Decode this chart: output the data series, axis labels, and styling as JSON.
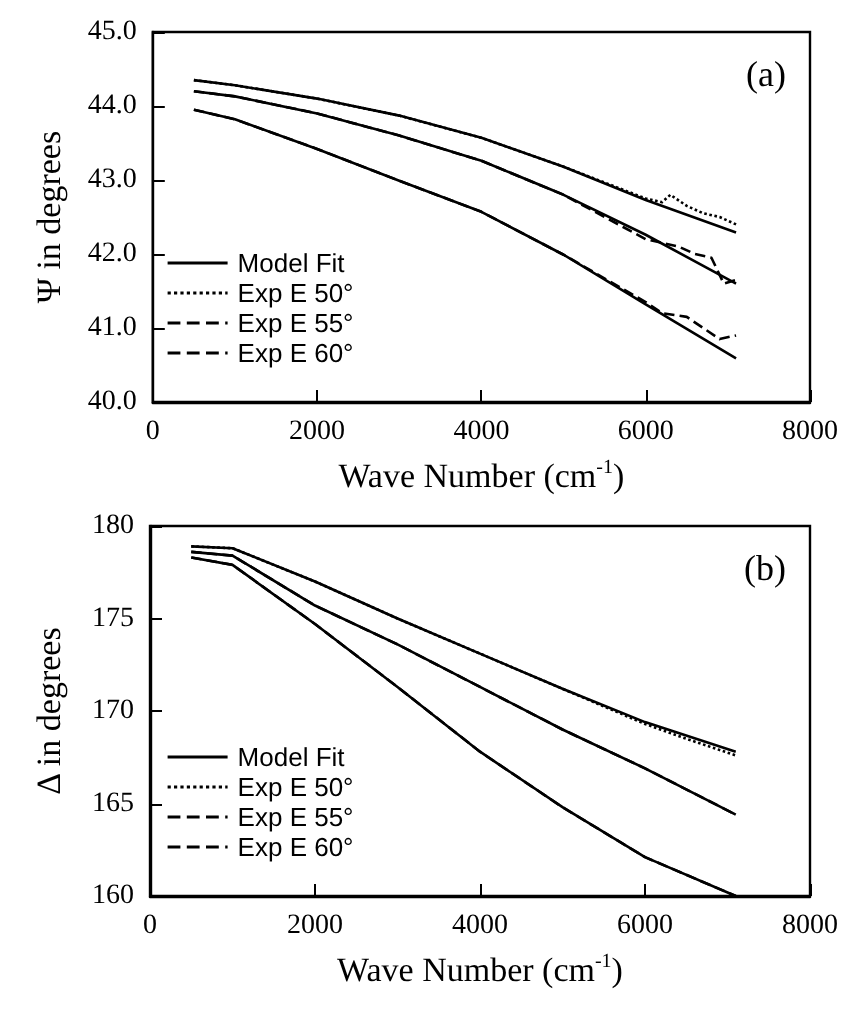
{
  "chart_data": [
    {
      "type": "line",
      "xlabel": "Wave Number (cm$^{-1}$)",
      "ylabel": "Ψ in degrees",
      "annotations": [
        "(a)"
      ],
      "xlim": [
        0,
        8000
      ],
      "xticks": [
        0,
        2000,
        4000,
        6000,
        8000
      ],
      "ylim": [
        40,
        45
      ],
      "yticks": [
        {
          "value": 40,
          "label": "40.0"
        },
        {
          "value": 41,
          "label": "41.0"
        },
        {
          "value": 42,
          "label": "42.0"
        },
        {
          "value": 43,
          "label": "43.0"
        },
        {
          "value": 44,
          "label": "44.0"
        },
        {
          "value": 45,
          "label": "45.0"
        }
      ],
      "grid": false,
      "legend": "left",
      "marker": "none",
      "series": [
        {
          "name": "Model Fit",
          "color": "#000000",
          "line_style": "solid",
          "x": [
            500,
            1000,
            2000,
            3000,
            4000,
            5000,
            6000,
            7100
          ],
          "values": [
            44.35,
            44.28,
            44.1,
            43.87,
            43.57,
            43.18,
            42.73,
            42.29
          ]
        },
        {
          "color": "#000000",
          "line_style": "solid",
          "x": [
            500,
            1000,
            2000,
            3000,
            4000,
            5000,
            6000,
            7100
          ],
          "values": [
            44.2,
            44.13,
            43.9,
            43.6,
            43.26,
            42.8,
            42.26,
            41.6
          ]
        },
        {
          "color": "#000000",
          "line_style": "solid",
          "x": [
            500,
            1000,
            2000,
            3000,
            4000,
            5000,
            6000,
            7100
          ],
          "values": [
            43.95,
            43.82,
            43.42,
            42.99,
            42.57,
            41.99,
            41.32,
            40.59
          ]
        },
        {
          "name": "Exp E 50°",
          "color": "#000000",
          "line_style": "dotted",
          "x": [
            500,
            1000,
            2000,
            3000,
            4000,
            5000,
            6000,
            6200,
            6300,
            6500,
            6700,
            6900,
            7100
          ],
          "values": [
            44.35,
            44.28,
            44.1,
            43.87,
            43.57,
            43.18,
            42.75,
            42.7,
            42.8,
            42.65,
            42.55,
            42.5,
            42.4
          ]
        },
        {
          "name": "Exp E 55°",
          "color": "#000000",
          "line_style": "dashed",
          "x": [
            500,
            1000,
            2000,
            3000,
            4000,
            5000,
            6000,
            6200,
            6400,
            6600,
            6800,
            6950,
            7100
          ],
          "values": [
            44.2,
            44.13,
            43.9,
            43.6,
            43.26,
            42.8,
            42.2,
            42.15,
            42.1,
            42.0,
            41.95,
            41.6,
            41.65
          ]
        },
        {
          "name": "Exp E 60°",
          "color": "#000000",
          "line_style": "dashed",
          "x": [
            500,
            1000,
            2000,
            3000,
            4000,
            5000,
            6000,
            6200,
            6500,
            6700,
            6900,
            7100
          ],
          "values": [
            43.95,
            43.82,
            43.42,
            42.99,
            42.57,
            41.99,
            41.35,
            41.2,
            41.15,
            41.0,
            40.85,
            40.9
          ]
        }
      ]
    },
    {
      "type": "line",
      "xlabel": "Wave Number (cm$^{-1}$)",
      "ylabel": "Δ in degrees",
      "annotations": [
        "(b)"
      ],
      "xlim": [
        0,
        8000
      ],
      "xticks": [
        0,
        2000,
        4000,
        6000,
        8000
      ],
      "ylim": [
        160,
        180
      ],
      "yticks": [
        160,
        165,
        170,
        175,
        180
      ],
      "grid": false,
      "legend": "left",
      "marker": "none",
      "series": [
        {
          "name": "Model Fit",
          "color": "#000000",
          "line_style": "solid",
          "x": [
            500,
            1000,
            2000,
            3000,
            4000,
            5000,
            6000,
            7100
          ],
          "values": [
            178.9,
            178.8,
            177.0,
            175.0,
            173.1,
            171.2,
            169.4,
            167.8
          ]
        },
        {
          "color": "#000000",
          "line_style": "solid",
          "x": [
            500,
            1000,
            2000,
            3000,
            4000,
            5000,
            6000,
            7100
          ],
          "values": [
            178.6,
            178.4,
            175.7,
            173.6,
            171.3,
            169.0,
            166.9,
            164.4
          ]
        },
        {
          "color": "#000000",
          "line_style": "solid",
          "x": [
            500,
            1000,
            2000,
            3000,
            4000,
            5000,
            6000,
            7100
          ],
          "values": [
            178.3,
            177.9,
            174.7,
            171.3,
            167.8,
            164.8,
            162.1,
            160.0
          ]
        },
        {
          "name": "Exp E 50°",
          "color": "#000000",
          "line_style": "dotted",
          "x": [
            500,
            1000,
            2000,
            3000,
            4000,
            5000,
            6000,
            6500,
            7100
          ],
          "values": [
            178.9,
            178.8,
            177.0,
            175.0,
            173.1,
            171.2,
            169.3,
            168.5,
            167.6
          ]
        },
        {
          "name": "Exp E 55°",
          "color": "#000000",
          "line_style": "dashed",
          "x": [
            500,
            1000,
            2000,
            3000,
            4000,
            5000,
            6000,
            7100
          ],
          "values": [
            178.6,
            178.4,
            175.7,
            173.6,
            171.3,
            169.0,
            166.9,
            164.4
          ]
        },
        {
          "name": "Exp E 60°",
          "color": "#000000",
          "line_style": "dashed",
          "x": [
            500,
            1000,
            2000,
            3000,
            4000,
            5000,
            6000,
            7100
          ],
          "values": [
            178.3,
            177.9,
            174.7,
            171.3,
            167.8,
            164.8,
            162.1,
            160.0
          ]
        }
      ]
    }
  ]
}
